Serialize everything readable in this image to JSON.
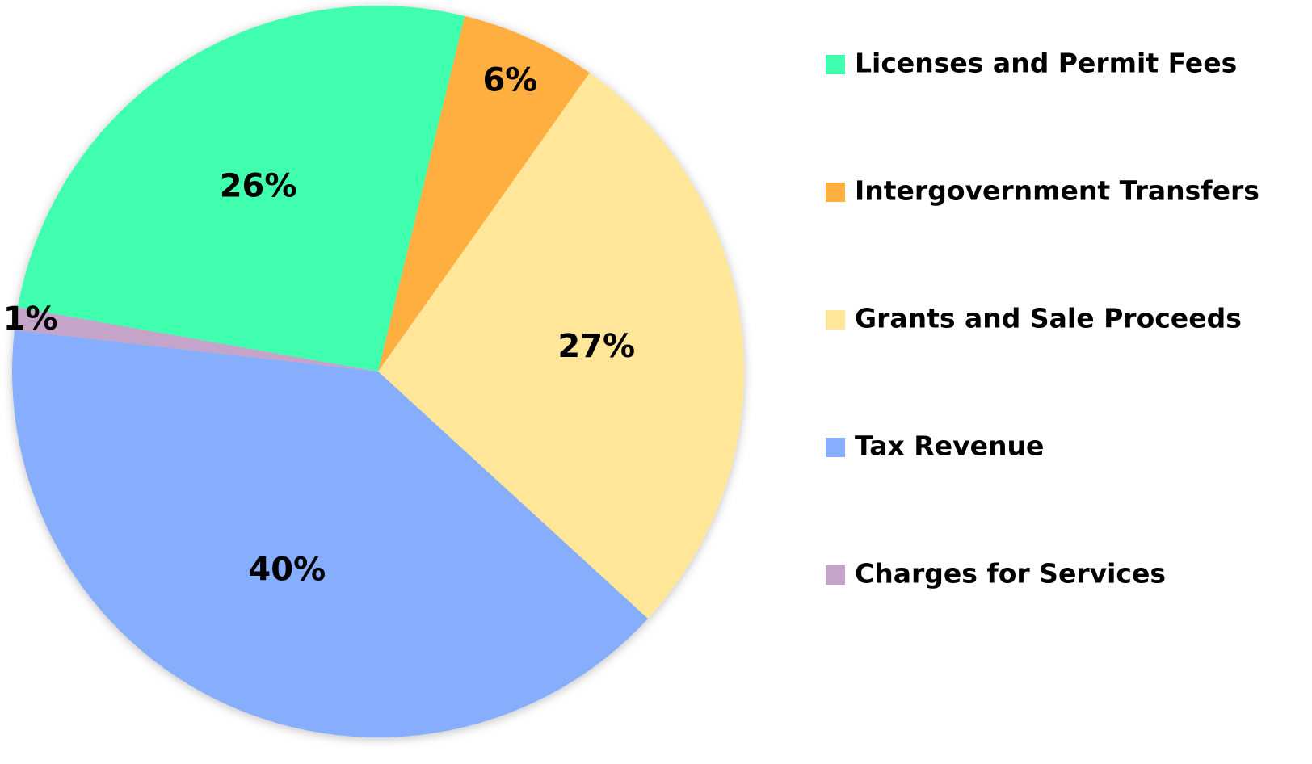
{
  "chart_data": {
    "type": "pie",
    "categories": [
      "Licenses and Permit Fees",
      "Intergovernment Transfers",
      "Grants and Sale Proceeds",
      "Tax Revenue",
      "Charges for Services"
    ],
    "values": [
      26,
      6,
      27,
      40,
      1
    ],
    "value_labels": [
      "26%",
      "6%",
      "27%",
      "40%",
      "1%"
    ],
    "colors": [
      "#3fffaf",
      "#ffaf3f",
      "#ffe699",
      "#87aefc",
      "#c4a5c9"
    ],
    "legend": "right"
  }
}
